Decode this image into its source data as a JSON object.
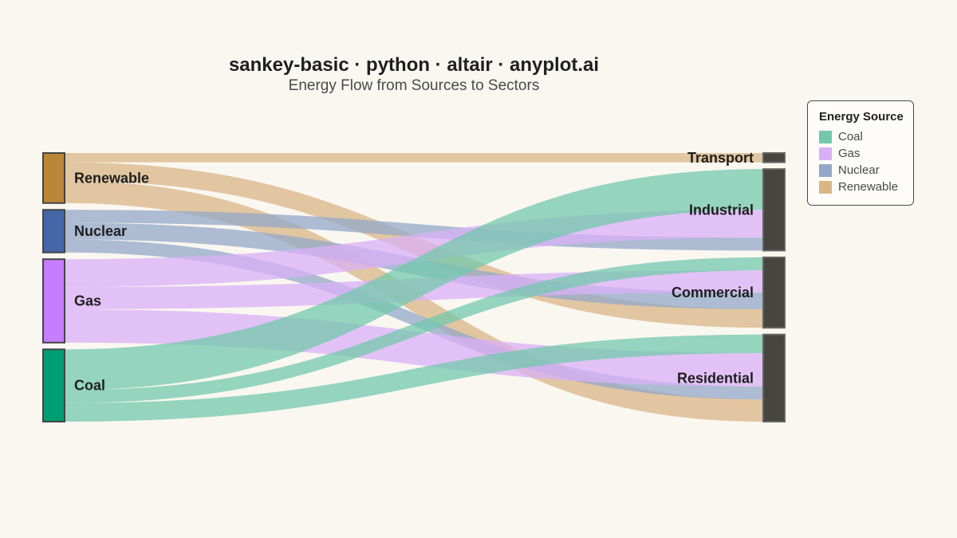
{
  "chart_data": {
    "type": "sankey",
    "title": "sankey-basic · python · altair · anyplot.ai",
    "subtitle": "Energy Flow from Sources to Sectors",
    "sources": [
      "Renewable",
      "Nuclear",
      "Gas",
      "Coal"
    ],
    "targets": [
      "Transport",
      "Industrial",
      "Commercial",
      "Residential"
    ],
    "source_colors": {
      "Coal": "#009e73",
      "Gas": "#c77dff",
      "Nuclear": "#4467a8",
      "Renewable": "#bb8637"
    },
    "link_colors": {
      "Coal": "#73c8ac",
      "Gas": "#d9b0f7",
      "Nuclear": "#93a8c8",
      "Renewable": "#d9b686"
    },
    "target_color": "#474540",
    "flows": [
      {
        "source": "Renewable",
        "target": "Transport",
        "value": 5
      },
      {
        "source": "Renewable",
        "target": "Commercial",
        "value": 10
      },
      {
        "source": "Renewable",
        "target": "Residential",
        "value": 12
      },
      {
        "source": "Nuclear",
        "target": "Industrial",
        "value": 7
      },
      {
        "source": "Nuclear",
        "target": "Commercial",
        "value": 9
      },
      {
        "source": "Nuclear",
        "target": "Residential",
        "value": 7
      },
      {
        "source": "Gas",
        "target": "Industrial",
        "value": 15
      },
      {
        "source": "Gas",
        "target": "Commercial",
        "value": 12
      },
      {
        "source": "Gas",
        "target": "Residential",
        "value": 18
      },
      {
        "source": "Coal",
        "target": "Industrial",
        "value": 22
      },
      {
        "source": "Coal",
        "target": "Commercial",
        "value": 7
      },
      {
        "source": "Coal",
        "target": "Residential",
        "value": 10
      }
    ]
  },
  "legend": {
    "title": "Energy Source",
    "items": [
      {
        "label": "Coal",
        "color": "#73c8ac"
      },
      {
        "label": "Gas",
        "color": "#d9b0f7"
      },
      {
        "label": "Nuclear",
        "color": "#93a8c8"
      },
      {
        "label": "Renewable",
        "color": "#d9b686"
      }
    ]
  }
}
